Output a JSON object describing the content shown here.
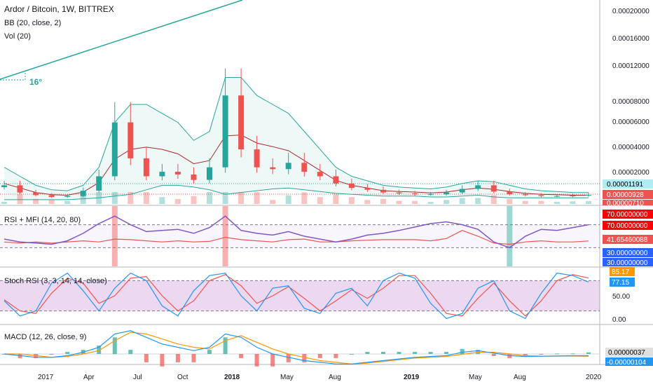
{
  "header": {
    "symbol": "Ardor / Bitcoin, 1W, BITTREX",
    "study_bb": "BB (20, close, 2)",
    "study_vol": "Vol (20)"
  },
  "annotations": {
    "angle_label": "16°"
  },
  "price_axis": {
    "ticks": [
      "0.00020000",
      "0.00016000",
      "0.00012000",
      "0.00008000",
      "0.00006000",
      "0.00004000",
      "0.00002000"
    ],
    "badges": [
      {
        "text": "0.00001191",
        "bg": "#b2ebf2",
        "fg": "#000000"
      },
      {
        "text": "0.00000928",
        "bg": "#ef5350",
        "fg": "#ffffff"
      },
      {
        "text": "0.00000710",
        "bg": "#ef5350",
        "fg": "#ffffff"
      }
    ]
  },
  "rsi_pane": {
    "title": "RSI + MFI (14, 20, 80)",
    "badges": [
      {
        "text": "70.00000000",
        "bg": "#ff0000",
        "fg": "#ffffff"
      },
      {
        "text": "70.00000000",
        "bg": "#ff0000",
        "fg": "#ffffff"
      },
      {
        "text": "41.65460088",
        "bg": "#ef5350",
        "fg": "#ffffff"
      },
      {
        "text": "30.00000000",
        "bg": "#2962ff",
        "fg": "#ffffff"
      },
      {
        "text": "30.00000000",
        "bg": "#2962ff",
        "fg": "#ffffff"
      }
    ]
  },
  "stoch_pane": {
    "title": "Stoch RSI (3, 3, 14, 14, close)",
    "ticks": [
      "50.00",
      "0.00"
    ],
    "badges": [
      {
        "text": "85.17",
        "bg": "#ff9800",
        "fg": "#ffffff"
      },
      {
        "text": "77.15",
        "bg": "#2196f3",
        "fg": "#ffffff"
      }
    ]
  },
  "macd_pane": {
    "title": "MACD (12, 26, close, 9)",
    "badges": [
      {
        "text": "0.00000037",
        "bg": "#e0e0e0",
        "fg": "#000000"
      },
      {
        "text": "-0.00000104",
        "bg": "#2196f3",
        "fg": "#ffffff"
      }
    ]
  },
  "time_axis": [
    "2017",
    "Apr",
    "Jul",
    "Oct",
    "2018",
    "May",
    "Aug",
    "2019",
    "May",
    "Aug",
    "2020"
  ],
  "colors": {
    "up": "#26a69a",
    "down": "#ef5350",
    "rsi": "#7e57c2",
    "mfi": "#ef5350",
    "bb": "#26a69a",
    "basis": "#a52a2a",
    "stoch_k": "#2196f3",
    "stoch_d": "#ef5350",
    "macd": "#2196f3",
    "signal": "#ff9800"
  },
  "chart_data": {
    "type": "candlestick",
    "price_unit": "BTC",
    "ylim": [
      0,
      0.00022
    ],
    "x": [
      "2016-10",
      "2016-11",
      "2016-12",
      "2017-01",
      "2017-02",
      "2017-03",
      "2017-04",
      "2017-05",
      "2017-06",
      "2017-07",
      "2017-08",
      "2017-09",
      "2017-10",
      "2017-11",
      "2017-12",
      "2018-01",
      "2018-02",
      "2018-03",
      "2018-04",
      "2018-05",
      "2018-06",
      "2018-07",
      "2018-08",
      "2018-09",
      "2018-10",
      "2018-11",
      "2018-12",
      "2019-01",
      "2019-02",
      "2019-03",
      "2019-04",
      "2019-05",
      "2019-06",
      "2019-07",
      "2019-08",
      "2019-09",
      "2019-10",
      "2019-11"
    ],
    "close": [
      2e-05,
      1.2e-05,
      9e-06,
      7e-06,
      8e-06,
      1.4e-05,
      3e-05,
      9e-05,
      5e-05,
      3e-05,
      3.5e-05,
      3.2e-05,
      2.6e-05,
      4e-05,
      0.00012,
      6e-05,
      4e-05,
      3.8e-05,
      4.5e-05,
      3.5e-05,
      3e-05,
      2.2e-05,
      1.7e-05,
      1.5e-05,
      1.2e-05,
      1.1e-05,
      1e-05,
      1e-05,
      1.2e-05,
      1.6e-05,
      2e-05,
      1.3e-05,
      1e-05,
      9e-06,
      8e-06,
      8e-06,
      8.5e-06,
      9.3e-06
    ],
    "bb_upper": [
      4e-05,
      3e-05,
      2e-05,
      1.5e-05,
      1.4e-05,
      2e-05,
      4e-05,
      9e-05,
      0.00011,
      0.00011,
      0.0001,
      9e-05,
      7e-05,
      8e-05,
      0.00014,
      0.00014,
      0.00012,
      0.00011,
      0.0001,
      8e-05,
      6e-05,
      4e-05,
      3e-05,
      2.5e-05,
      2e-05,
      1.8e-05,
      1.7e-05,
      1.6e-05,
      1.8e-05,
      2.2e-05,
      2.5e-05,
      2.4e-05,
      2e-05,
      1.6e-05,
      1.4e-05,
      1.3e-05,
      1.2e-05,
      1.19e-05
    ],
    "bb_lower": [
      4e-06,
      4e-06,
      4e-06,
      4e-06,
      4e-06,
      5e-06,
      6e-06,
      8e-06,
      1e-05,
      1.5e-05,
      2e-05,
      2e-05,
      1.8e-05,
      1.5e-05,
      1e-05,
      1.2e-05,
      1.4e-05,
      1.6e-05,
      1.7e-05,
      1.5e-05,
      1.3e-05,
      1.1e-05,
      1e-05,
      9e-06,
      8e-06,
      8e-06,
      8e-06,
      7e-06,
      7e-06,
      8e-06,
      9e-06,
      7e-06,
      6e-06,
      6e-06,
      6e-06,
      6e-06,
      6e-06,
      6e-06
    ],
    "rsi": [
      45,
      40,
      38,
      36,
      42,
      55,
      72,
      85,
      70,
      58,
      60,
      62,
      55,
      65,
      85,
      60,
      55,
      52,
      58,
      50,
      45,
      40,
      45,
      52,
      55,
      60,
      66,
      72,
      75,
      70,
      62,
      40,
      30,
      50,
      62,
      60,
      65,
      70
    ],
    "mfi": [
      40,
      38,
      40,
      38,
      40,
      42,
      40,
      45,
      44,
      42,
      40,
      42,
      40,
      41,
      48,
      44,
      42,
      40,
      44,
      45,
      40,
      40,
      42,
      43,
      44,
      44,
      44,
      42,
      46,
      60,
      50,
      38,
      36,
      40,
      42,
      40,
      40,
      41.65
    ],
    "stoch_k": [
      40,
      10,
      20,
      75,
      95,
      60,
      20,
      65,
      95,
      80,
      30,
      10,
      60,
      90,
      95,
      50,
      20,
      65,
      70,
      25,
      15,
      55,
      65,
      30,
      80,
      95,
      85,
      35,
      5,
      15,
      65,
      80,
      20,
      5,
      55,
      95,
      90,
      77.15
    ],
    "stoch_d": [
      42,
      20,
      15,
      55,
      85,
      75,
      35,
      50,
      85,
      88,
      50,
      20,
      40,
      80,
      92,
      70,
      35,
      50,
      68,
      45,
      20,
      40,
      62,
      45,
      65,
      90,
      90,
      55,
      15,
      10,
      45,
      75,
      40,
      10,
      40,
      80,
      92,
      85.17
    ],
    "macd": [
      0.0,
      -1e-06,
      -2e-06,
      -2e-06,
      -1e-06,
      1e-06,
      4e-06,
      1.2e-05,
      1.4e-05,
      1e-05,
      6e-06,
      4e-06,
      2e-06,
      4e-06,
      1.2e-05,
      1e-05,
      4e-06,
      0.0,
      -2e-06,
      -4e-06,
      -5e-06,
      -6e-06,
      -6e-06,
      -5e-06,
      -4e-06,
      -3e-06,
      -2e-06,
      -1.5e-06,
      -1e-06,
      1e-06,
      2e-06,
      5e-07,
      -1e-06,
      -1.5e-06,
      -1.4e-06,
      -1.2e-06,
      -1.1e-06,
      -1.04e-06
    ],
    "signal": [
      0.0,
      0.0,
      -1e-06,
      -2e-06,
      -1.5e-06,
      0.0,
      2e-06,
      8e-06,
      1.3e-05,
      1.2e-05,
      9e-06,
      6e-06,
      4e-06,
      3e-06,
      8e-06,
      1.1e-05,
      7e-06,
      3e-06,
      0.0,
      -2e-06,
      -4e-06,
      -5e-06,
      -6e-06,
      -5.5e-06,
      -4.5e-06,
      -3.5e-06,
      -2.5e-06,
      -2e-06,
      -1.5e-06,
      -2e-07,
      1e-06,
      1e-06,
      0.0,
      -1e-06,
      -1.3e-06,
      -1.3e-06,
      -1.2e-06,
      -1.41e-06
    ]
  }
}
